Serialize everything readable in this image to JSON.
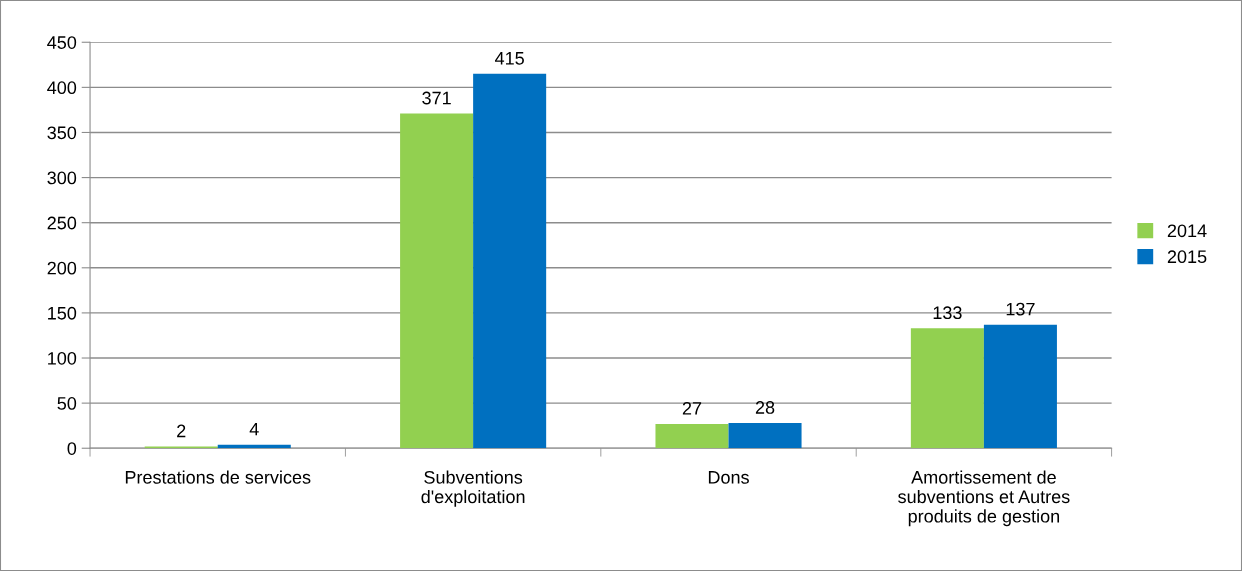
{
  "chart_data": {
    "type": "bar",
    "categories": [
      "Prestations de services",
      "Subventions\nd'exploitation",
      "Dons",
      "Amortissement de\nsubventions et Autres\nproduits de gestion"
    ],
    "series": [
      {
        "name": "2014",
        "color": "#92d050",
        "values": [
          2,
          371,
          27,
          133
        ]
      },
      {
        "name": "2015",
        "color": "#0070c0",
        "values": [
          4,
          415,
          28,
          137
        ]
      }
    ],
    "ylim": [
      0,
      450
    ],
    "yticks": [
      0,
      50,
      100,
      150,
      200,
      250,
      300,
      350,
      400,
      450
    ],
    "grid": "y",
    "legend": "right",
    "data_labels": true
  }
}
